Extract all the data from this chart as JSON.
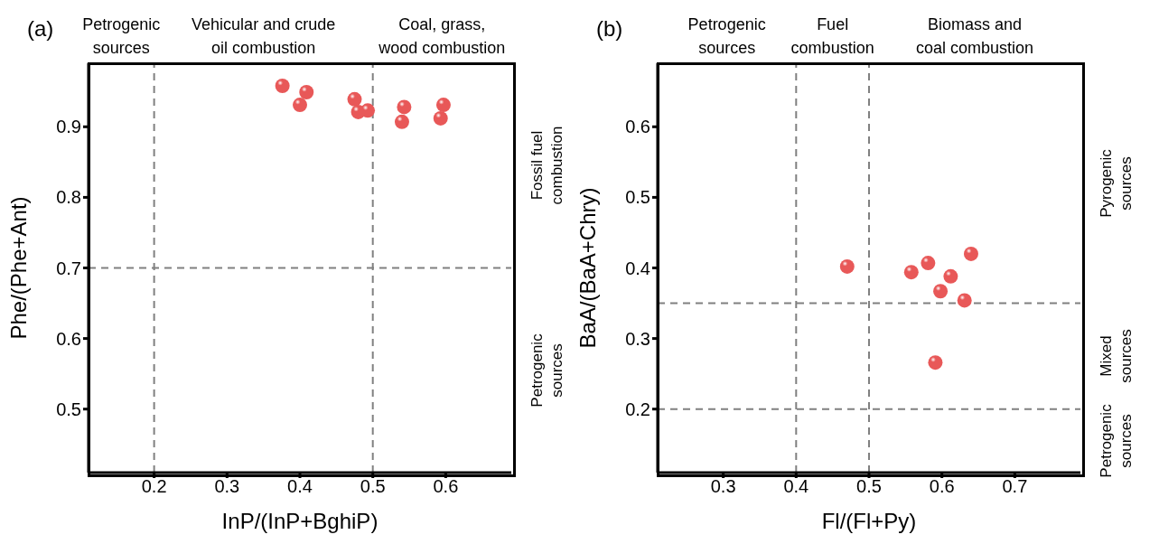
{
  "chart_data": [
    {
      "type": "scatter",
      "title": "(a)",
      "xlabel": "InP/(InP+BghiP)",
      "ylabel": "Phe/(Phe+Ant)",
      "x": [
        0.376,
        0.409,
        0.4,
        0.475,
        0.48,
        0.493,
        0.543,
        0.54,
        0.597,
        0.593
      ],
      "series": [
        {
          "color": "#e85858",
          "values": [
            0.958,
            0.949,
            0.931,
            0.939,
            0.921,
            0.923,
            0.928,
            0.907,
            0.931,
            0.912
          ]
        }
      ],
      "xlim": [
        0.11,
        0.69
      ],
      "xticks": [
        0.2,
        0.3,
        0.4,
        0.5,
        0.6
      ],
      "ylim": [
        0.41,
        0.99
      ],
      "yticks": [
        0.5,
        0.6,
        0.7,
        0.8,
        0.9
      ],
      "ref_lines": [
        {
          "axis": "x",
          "value": 0.2,
          "color": "#808080",
          "line_style": "dashed"
        },
        {
          "axis": "x",
          "value": 0.5,
          "color": "#808080",
          "line_style": "dashed"
        },
        {
          "axis": "y",
          "value": 0.7,
          "color": "#808080",
          "line_style": "dashed"
        }
      ],
      "annotations": [
        "Petrogenic\nsources",
        "Vehicular and crude\noil combustion",
        "Coal, grass,\nwood combustion",
        "Fossil fuel\ncombustion",
        "Petrogenic\nsources"
      ],
      "marker": "circle",
      "grid": false,
      "legend": false
    },
    {
      "type": "scatter",
      "title": "(b)",
      "xlabel": "Fl/(Fl+Py)",
      "ylabel": "BaA/(BaA+Chry)",
      "x": [
        0.47,
        0.558,
        0.581,
        0.612,
        0.598,
        0.64,
        0.631,
        0.591
      ],
      "series": [
        {
          "color": "#e85858",
          "values": [
            0.402,
            0.394,
            0.407,
            0.388,
            0.367,
            0.42,
            0.354,
            0.266
          ]
        }
      ],
      "xlim": [
        0.21,
        0.79
      ],
      "xticks": [
        0.3,
        0.4,
        0.5,
        0.6,
        0.7
      ],
      "ylim": [
        0.11,
        0.69
      ],
      "yticks": [
        0.2,
        0.3,
        0.4,
        0.5,
        0.6
      ],
      "ref_lines": [
        {
          "axis": "x",
          "value": 0.4,
          "color": "#808080",
          "line_style": "dashed"
        },
        {
          "axis": "x",
          "value": 0.5,
          "color": "#808080",
          "line_style": "dashed"
        },
        {
          "axis": "y",
          "value": 0.35,
          "color": "#808080",
          "line_style": "dashed"
        },
        {
          "axis": "y",
          "value": 0.2,
          "color": "#808080",
          "line_style": "dashed"
        }
      ],
      "annotations": [
        "Petrogenic\nsources",
        "Fuel\ncombustion",
        "Biomass and\ncoal combustion",
        "Pyrogenic\nsources",
        "Mixed\nsources",
        "Petrogenic\nsources"
      ],
      "marker": "circle",
      "grid": false,
      "legend": false
    }
  ]
}
